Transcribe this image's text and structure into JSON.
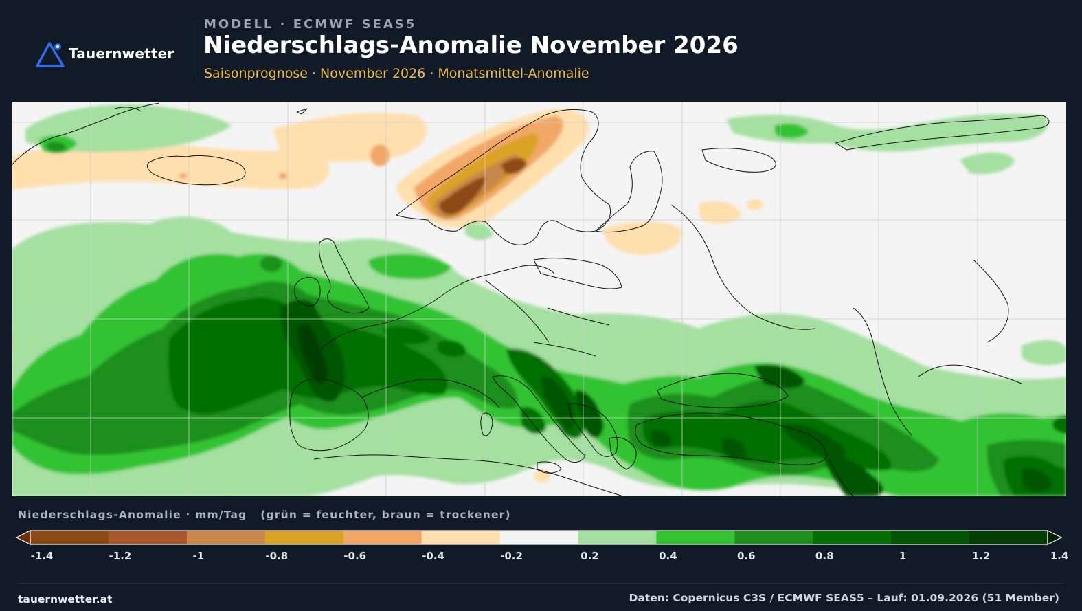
{
  "brand": {
    "logo_text": "Tauernwetter"
  },
  "header": {
    "eyebrow": "MODELL · ECMWF SEAS5",
    "title": "Niederschlags-Anomalie November 2026",
    "subtitle": "Saisonprognose · November 2026 · Monatsmittel-Anomalie"
  },
  "legend": {
    "title": "Niederschlags-Anomalie · mm/Tag   (grün = feuchter, braun = trockener)",
    "ticks": [
      "-1.4",
      "-1.2",
      "-1",
      "-0.8",
      "-0.6",
      "-0.4",
      "-0.2",
      "0.2",
      "0.4",
      "0.6",
      "0.8",
      "1",
      "1.2",
      "1.4"
    ],
    "colors": [
      "#8c4a16",
      "#a6582c",
      "#c9884a",
      "#daa326",
      "#f2a766",
      "#ffdfae",
      "#f4f4f4",
      "#a4e0a0",
      "#33c333",
      "#1e8e1e",
      "#037003",
      "#025402",
      "#023e02"
    ],
    "under_color": "#6e2e0a",
    "over_color": "#011f01"
  },
  "footer": {
    "site": "tauernwetter.at",
    "source": "Daten: Copernicus C3S / ECMWF SEAS5 – Lauf: 01.09.2026 (51 Member)"
  }
}
